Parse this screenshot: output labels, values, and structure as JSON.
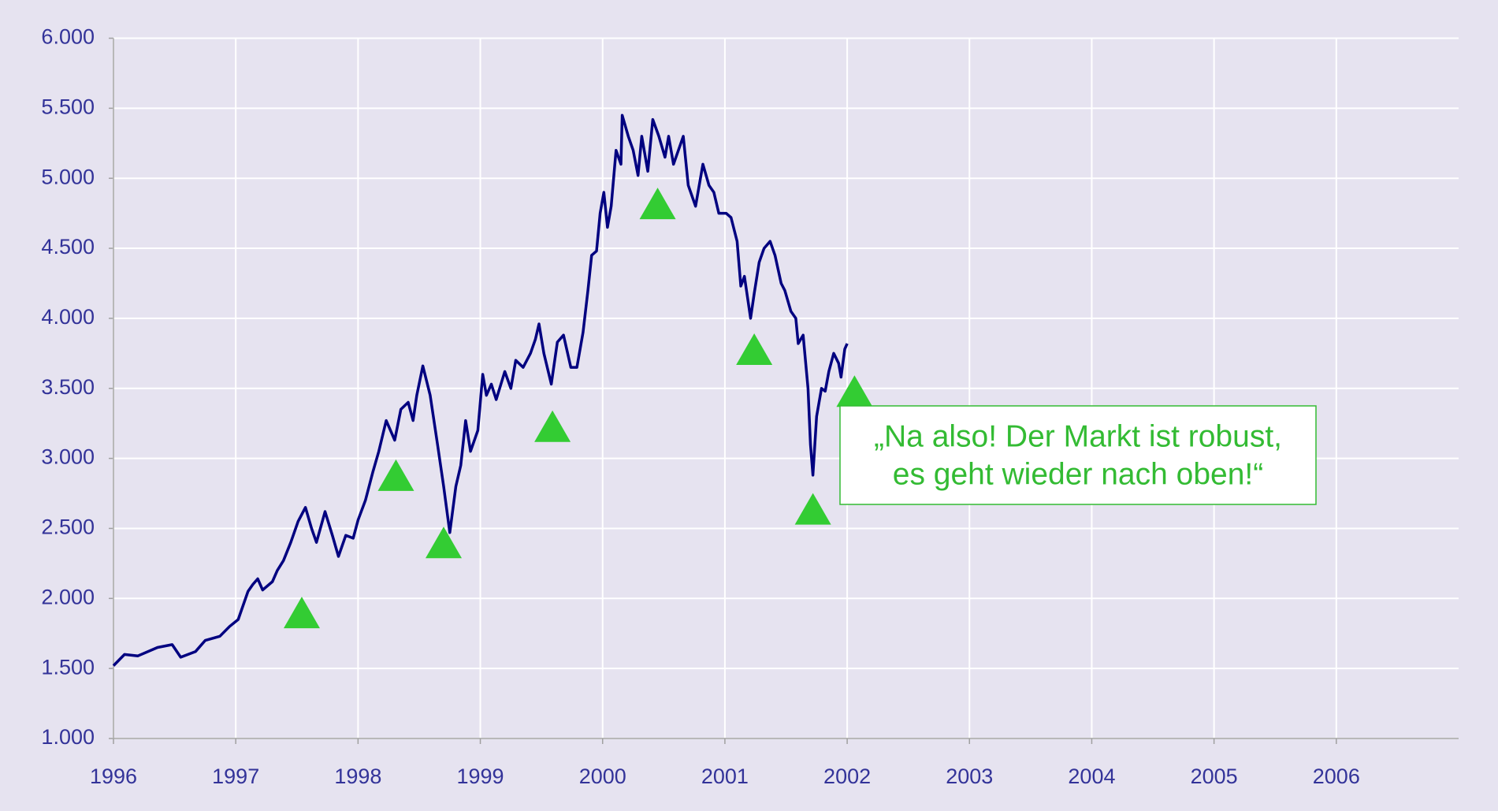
{
  "chart_data": {
    "type": "line",
    "background": "#e6e3f0",
    "grid": true,
    "xlim": [
      1996,
      2007
    ],
    "xticks": [
      1996,
      1997,
      1998,
      1999,
      2000,
      2001,
      2002,
      2003,
      2004,
      2005,
      2006
    ],
    "ylim": [
      1000,
      6000
    ],
    "yticks": [
      {
        "value": 1000,
        "label": "1.000"
      },
      {
        "value": 1500,
        "label": "1.500"
      },
      {
        "value": 2000,
        "label": "2.000"
      },
      {
        "value": 2500,
        "label": "2.500"
      },
      {
        "value": 3000,
        "label": "3.000"
      },
      {
        "value": 3500,
        "label": "3.500"
      },
      {
        "value": 4000,
        "label": "4.000"
      },
      {
        "value": 4500,
        "label": "4.500"
      },
      {
        "value": 5000,
        "label": "5.000"
      },
      {
        "value": 5500,
        "label": "5.500"
      },
      {
        "value": 6000,
        "label": "6.000"
      }
    ],
    "series": [
      {
        "color": "#000080",
        "x": [
          1996.0,
          1996.09,
          1996.2,
          1996.36,
          1996.48,
          1996.55,
          1996.67,
          1996.75,
          1996.87,
          1996.95,
          1997.02,
          1997.1,
          1997.14,
          1997.18,
          1997.22,
          1997.3,
          1997.34,
          1997.39,
          1997.45,
          1997.51,
          1997.57,
          1997.62,
          1997.66,
          1997.73,
          1997.79,
          1997.84,
          1997.9,
          1997.96,
          1998.0,
          1998.06,
          1998.12,
          1998.17,
          1998.23,
          1998.3,
          1998.35,
          1998.41,
          1998.45,
          1998.48,
          1998.53,
          1998.59,
          1998.65,
          1998.7,
          1998.75,
          1998.8,
          1998.84,
          1998.88,
          1998.92,
          1998.98,
          1999.02,
          1999.05,
          1999.09,
          1999.13,
          1999.2,
          1999.25,
          1999.29,
          1999.35,
          1999.41,
          1999.45,
          1999.48,
          1999.52,
          1999.58,
          1999.63,
          1999.68,
          1999.74,
          1999.79,
          1999.84,
          1999.88,
          1999.91,
          1999.95,
          1999.98,
          2000.01,
          2000.04,
          2000.07,
          2000.11,
          2000.15,
          2000.16,
          2000.21,
          2000.25,
          2000.29,
          2000.32,
          2000.37,
          2000.41,
          2000.46,
          2000.51,
          2000.54,
          2000.58,
          2000.62,
          2000.66,
          2000.7,
          2000.76,
          2000.82,
          2000.87,
          2000.91,
          2000.95,
          2001.01,
          2001.05,
          2001.1,
          2001.13,
          2001.16,
          2001.21,
          2001.24,
          2001.28,
          2001.32,
          2001.37,
          2001.41,
          2001.46,
          2001.49,
          2001.54,
          2001.58,
          2001.6,
          2001.64,
          2001.68,
          2001.7,
          2001.72,
          2001.75,
          2001.79,
          2001.82,
          2001.85,
          2001.89,
          2001.93,
          2001.95,
          2001.98,
          2002.0
        ],
        "values": [
          1520,
          1600,
          1590,
          1650,
          1670,
          1580,
          1620,
          1700,
          1730,
          1800,
          1850,
          2050,
          2100,
          2140,
          2060,
          2120,
          2200,
          2270,
          2400,
          2550,
          2650,
          2500,
          2400,
          2620,
          2450,
          2300,
          2450,
          2430,
          2560,
          2700,
          2900,
          3050,
          3270,
          3130,
          3350,
          3400,
          3270,
          3450,
          3660,
          3450,
          3100,
          2800,
          2470,
          2800,
          2950,
          3270,
          3050,
          3200,
          3600,
          3450,
          3530,
          3420,
          3620,
          3500,
          3700,
          3650,
          3750,
          3850,
          3960,
          3750,
          3530,
          3830,
          3880,
          3650,
          3650,
          3900,
          4200,
          4450,
          4480,
          4750,
          4900,
          4650,
          4800,
          5200,
          5100,
          5450,
          5300,
          5200,
          5020,
          5300,
          5050,
          5420,
          5300,
          5150,
          5300,
          5100,
          5200,
          5300,
          4950,
          4800,
          5100,
          4950,
          4900,
          4750,
          4750,
          4720,
          4550,
          4230,
          4300,
          4000,
          4180,
          4400,
          4500,
          4550,
          4450,
          4250,
          4200,
          4050,
          4000,
          3820,
          3880,
          3500,
          3100,
          2880,
          3300,
          3500,
          3480,
          3620,
          3750,
          3680,
          3580,
          3780,
          3820
        ]
      }
    ],
    "markers": {
      "color": "#33cc33",
      "x": [
        1997.54,
        1998.31,
        1998.7,
        1999.59,
        2000.45,
        2001.24,
        2001.72,
        2002.06
      ],
      "values": [
        1900,
        2880,
        2400,
        3230,
        4820,
        3780,
        2640,
        3480
      ]
    },
    "annotation": [
      "„Na also! Der Markt ist robust,",
      "es geht wieder nach oben!“"
    ],
    "annotation_color": "#33bb33"
  }
}
